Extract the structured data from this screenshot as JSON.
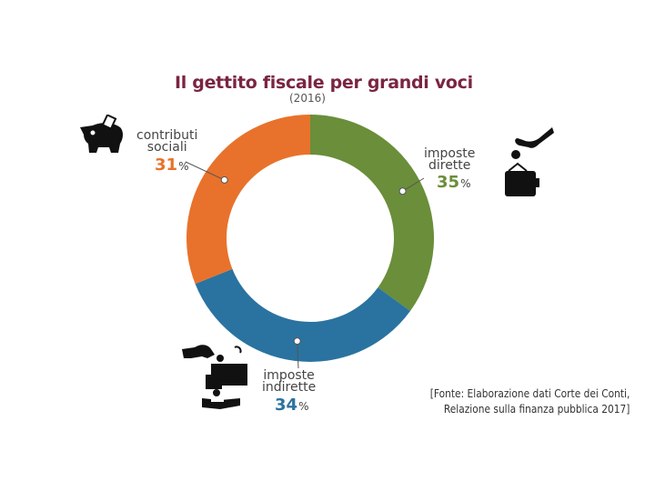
{
  "chart_data": {
    "type": "pie",
    "title": "Il gettito fiscale per grandi voci",
    "subtitle": "(2016)",
    "labels": [
      [
        "imposte",
        "dirette"
      ],
      [
        "imposte",
        "indirette"
      ],
      [
        "contributi",
        "sociali"
      ]
    ],
    "values": [
      35,
      34,
      31
    ],
    "value_labels": [
      "35",
      "34",
      "31"
    ],
    "unit": "%",
    "colors": [
      "#6a8e3a",
      "#2a73a0",
      "#e8722b"
    ],
    "donut": true
  },
  "source": {
    "line1": "[Fonte: Elaborazione dati Corte dei Conti,",
    "line2": "Relazione sulla finanza pubblica 2017]"
  },
  "icons": [
    "piggy-bank-icon",
    "hand-coin-wallet-icon",
    "hand-coin-register-icon"
  ]
}
